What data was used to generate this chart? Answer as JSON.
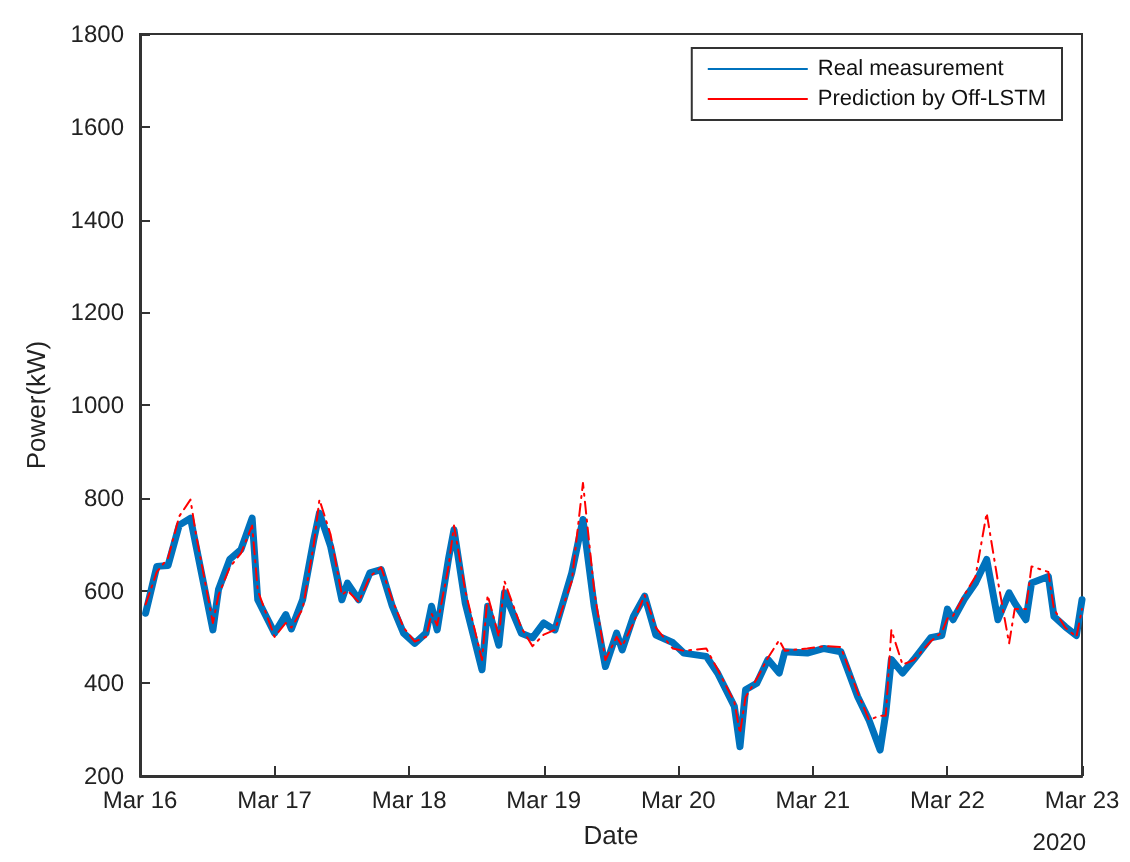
{
  "chart_data": {
    "type": "line",
    "xlabel": "Date",
    "ylabel": "Power(kW)",
    "annotations": [
      "2020"
    ],
    "xlim": [
      "2020-03-16",
      "2020-03-23"
    ],
    "xticks": [
      {
        "value": "2020-03-16",
        "label": "Mar 16"
      },
      {
        "value": "2020-03-17",
        "label": "Mar 17"
      },
      {
        "value": "2020-03-18",
        "label": "Mar 18"
      },
      {
        "value": "2020-03-19",
        "label": "Mar 19"
      },
      {
        "value": "2020-03-20",
        "label": "Mar 20"
      },
      {
        "value": "2020-03-21",
        "label": "Mar 21"
      },
      {
        "value": "2020-03-22",
        "label": "Mar 22"
      },
      {
        "value": "2020-03-23",
        "label": "Mar 23"
      }
    ],
    "ylim": [
      200,
      1800
    ],
    "yticks": [
      200,
      400,
      600,
      800,
      1000,
      1200,
      1400,
      1600,
      1800
    ],
    "grid": false,
    "legend": "top right",
    "marker": "none",
    "x": [
      "2020-03-16T01:00",
      "2020-03-16T03:00",
      "2020-03-16T05:00",
      "2020-03-16T07:00",
      "2020-03-16T09:00",
      "2020-03-16T10:00",
      "2020-03-16T13:00",
      "2020-03-16T14:00",
      "2020-03-16T16:00",
      "2020-03-16T18:00",
      "2020-03-16T20:00",
      "2020-03-16T21:00",
      "2020-03-17T00:00",
      "2020-03-17T02:00",
      "2020-03-17T03:00",
      "2020-03-17T05:00",
      "2020-03-17T07:00",
      "2020-03-17T08:00",
      "2020-03-17T10:00",
      "2020-03-17T12:00",
      "2020-03-17T13:00",
      "2020-03-17T15:00",
      "2020-03-17T17:00",
      "2020-03-17T19:00",
      "2020-03-17T21:00",
      "2020-03-17T23:00",
      "2020-03-18T01:00",
      "2020-03-18T03:00",
      "2020-03-18T04:00",
      "2020-03-18T05:00",
      "2020-03-18T07:00",
      "2020-03-18T08:00",
      "2020-03-18T10:00",
      "2020-03-18T13:00",
      "2020-03-18T14:00",
      "2020-03-18T16:00",
      "2020-03-18T17:00",
      "2020-03-18T20:00",
      "2020-03-18T22:00",
      "2020-03-19T00:00",
      "2020-03-19T02:00",
      "2020-03-19T05:00",
      "2020-03-19T07:00",
      "2020-03-19T09:00",
      "2020-03-19T11:00",
      "2020-03-19T13:00",
      "2020-03-19T14:00",
      "2020-03-19T16:00",
      "2020-03-19T18:00",
      "2020-03-19T20:00",
      "2020-03-19T23:00",
      "2020-03-20T01:00",
      "2020-03-20T05:00",
      "2020-03-20T07:00",
      "2020-03-20T10:00",
      "2020-03-20T11:00",
      "2020-03-20T12:00",
      "2020-03-20T14:00",
      "2020-03-20T16:00",
      "2020-03-20T18:00",
      "2020-03-20T19:00",
      "2020-03-20T23:00",
      "2020-03-21T02:00",
      "2020-03-21T05:00",
      "2020-03-21T06:00",
      "2020-03-21T08:00",
      "2020-03-21T10:00",
      "2020-03-21T12:00",
      "2020-03-21T13:00",
      "2020-03-21T14:00",
      "2020-03-21T16:00",
      "2020-03-21T18:00",
      "2020-03-21T21:00",
      "2020-03-21T23:00",
      "2020-03-22T00:00",
      "2020-03-22T01:00",
      "2020-03-22T03:00",
      "2020-03-22T05:00",
      "2020-03-22T07:00",
      "2020-03-22T09:00",
      "2020-03-22T11:00",
      "2020-03-22T12:00",
      "2020-03-22T14:00",
      "2020-03-22T15:00",
      "2020-03-22T18:00",
      "2020-03-22T19:00",
      "2020-03-22T21:00",
      "2020-03-22T23:00",
      "2020-03-23T00:00"
    ],
    "series": [
      {
        "name": "Real measurement",
        "color": "#0072bd",
        "line_style": "solid",
        "values": [
          551,
          652,
          654,
          741,
          756,
          696,
          515,
          602,
          667,
          688,
          756,
          580,
          508,
          548,
          517,
          580,
          710,
          767,
          695,
          580,
          616,
          580,
          638,
          645,
          566,
          508,
          486,
          508,
          566,
          515,
          667,
          731,
          573,
          429,
          566,
          482,
          595,
          508,
          498,
          530,
          515,
          638,
          753,
          566,
          436,
          508,
          472,
          544,
          588,
          504,
          488,
          465,
          458,
          422,
          350,
          263,
          386,
          400,
          451,
          422,
          468,
          465,
          475,
          468,
          436,
          371,
          321,
          256,
          335,
          451,
          422,
          451,
          498,
          503,
          560,
          537,
          581,
          616,
          667,
          537,
          595,
          573,
          537,
          616,
          630,
          544,
          522,
          503,
          580
        ]
      },
      {
        "name": "Prediction by Off-LSTM",
        "color": "#ff0000",
        "line_style": "dashed",
        "values": [
          570,
          640,
          670,
          760,
          796,
          720,
          530,
          590,
          650,
          680,
          740,
          600,
          500,
          530,
          520,
          560,
          700,
          796,
          720,
          590,
          600,
          575,
          630,
          650,
          580,
          520,
          490,
          500,
          550,
          525,
          650,
          740,
          600,
          450,
          590,
          500,
          620,
          520,
          480,
          505,
          515,
          620,
          832,
          600,
          450,
          500,
          480,
          530,
          590,
          520,
          475,
          470,
          475,
          430,
          360,
          292,
          370,
          410,
          455,
          493,
          470,
          475,
          480,
          478,
          445,
          380,
          321,
          330,
          330,
          515,
          440,
          450,
          490,
          510,
          540,
          545,
          590,
          630,
          767,
          620,
          486,
          560,
          560,
          652,
          640,
          560,
          520,
          500,
          560
        ]
      }
    ]
  }
}
